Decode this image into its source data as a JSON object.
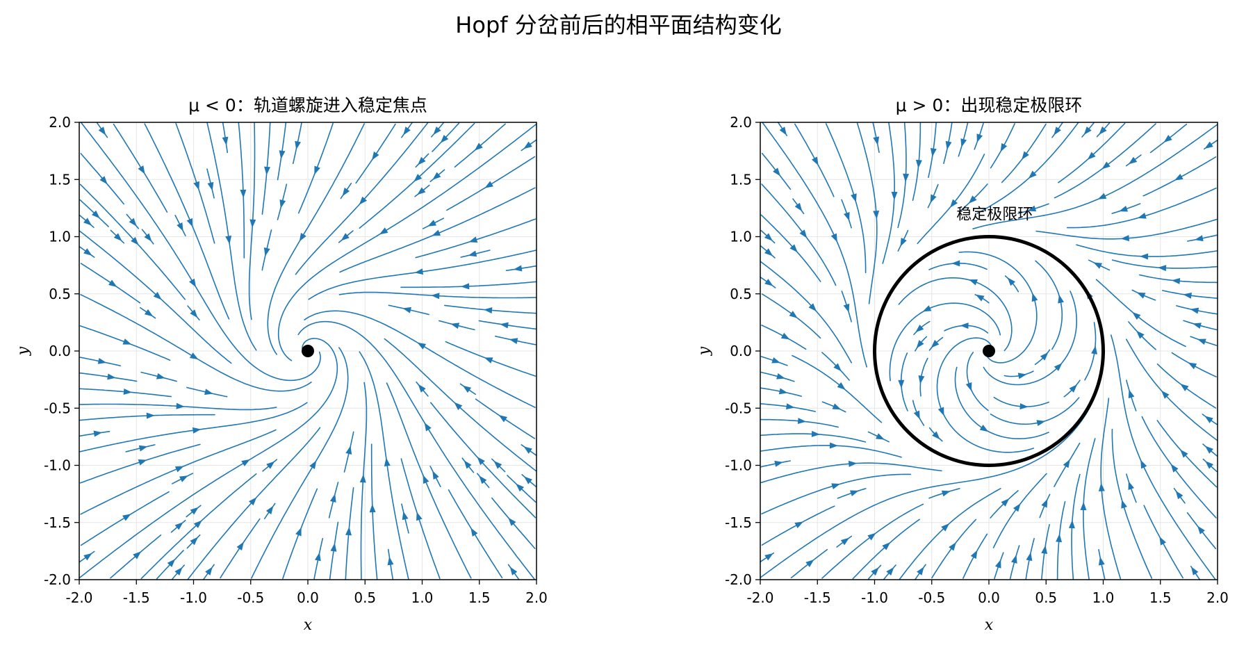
{
  "figure_title": "Hopf 分岔前后的相平面结构变化",
  "chart_data": [
    {
      "type": "streamplot",
      "panel": "left",
      "title": "μ < 0：轨道螺旋进入稳定焦点",
      "mu_sign": "negative",
      "xlabel": "x",
      "ylabel": "y",
      "xlim": [
        -2.0,
        2.0
      ],
      "ylim": [
        -2.0,
        2.0
      ],
      "xticks": [
        "-2.0",
        "-1.5",
        "-1.0",
        "-0.5",
        "0.0",
        "0.5",
        "1.0",
        "1.5",
        "2.0"
      ],
      "yticks": [
        "-2.0",
        "-1.5",
        "-1.0",
        "-0.5",
        "0.0",
        "0.5",
        "1.0",
        "1.5",
        "2.0"
      ],
      "grid": true,
      "equilibrium": {
        "x": 0.0,
        "y": 0.0
      },
      "stream_color": "#1f77b4",
      "limit_cycle": null,
      "annotation": null
    },
    {
      "type": "streamplot",
      "panel": "right",
      "title": "μ > 0：出现稳定极限环",
      "mu_sign": "positive",
      "xlabel": "x",
      "ylabel": "y",
      "xlim": [
        -2.0,
        2.0
      ],
      "ylim": [
        -2.0,
        2.0
      ],
      "xticks": [
        "-2.0",
        "-1.5",
        "-1.0",
        "-0.5",
        "0.0",
        "0.5",
        "1.0",
        "1.5",
        "2.0"
      ],
      "yticks": [
        "-2.0",
        "-1.5",
        "-1.0",
        "-0.5",
        "0.0",
        "0.5",
        "1.0",
        "1.5",
        "2.0"
      ],
      "grid": true,
      "equilibrium": {
        "x": 0.0,
        "y": 0.0
      },
      "stream_color": "#1f77b4",
      "limit_cycle": {
        "center": [
          0.0,
          0.0
        ],
        "radius": 1.0,
        "color": "#000000"
      },
      "annotation": {
        "text": "稳定极限环",
        "x": 0.05,
        "y": 1.2
      }
    }
  ]
}
